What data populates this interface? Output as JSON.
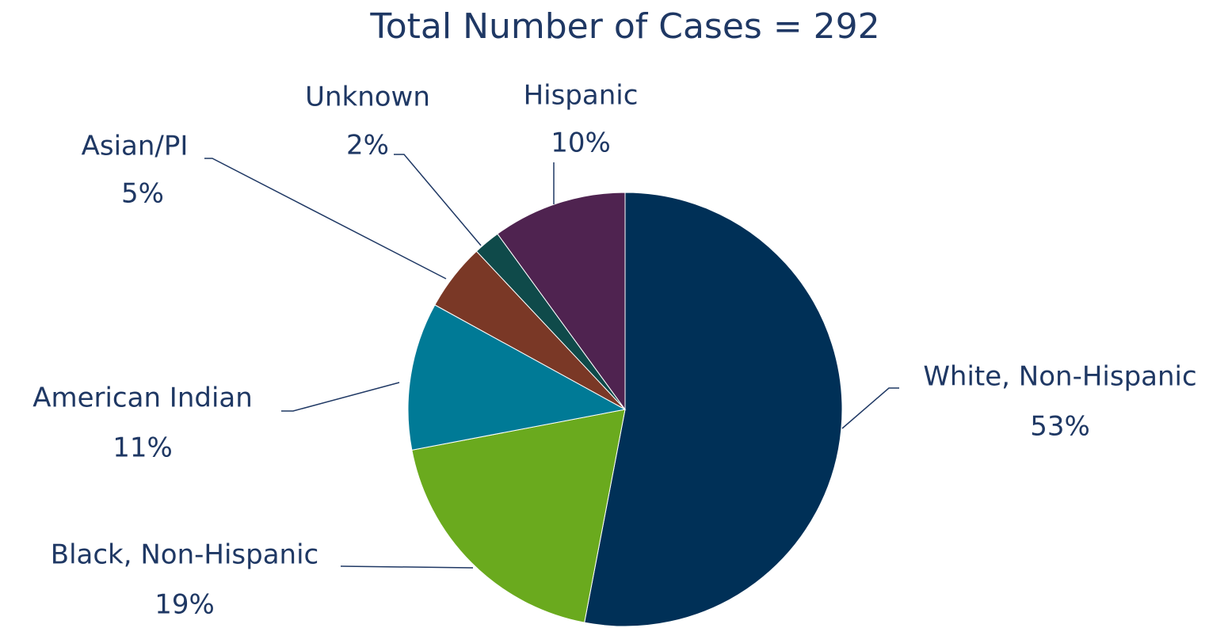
{
  "chart_data": {
    "type": "pie",
    "title": "Total Number of Cases = 292",
    "categories": [
      "White, Non-Hispanic",
      "Black, Non-Hispanic",
      "American Indian",
      "Asian/PI",
      "Unknown",
      "Hispanic"
    ],
    "values": [
      53,
      19,
      11,
      5,
      2,
      10
    ],
    "value_labels": [
      "53%",
      "19%",
      "11%",
      "5%",
      "2%",
      "10%"
    ],
    "colors": [
      "#003057",
      "#6aaa1e",
      "#007a96",
      "#7a3826",
      "#0f4a4a",
      "#4f2350"
    ]
  }
}
